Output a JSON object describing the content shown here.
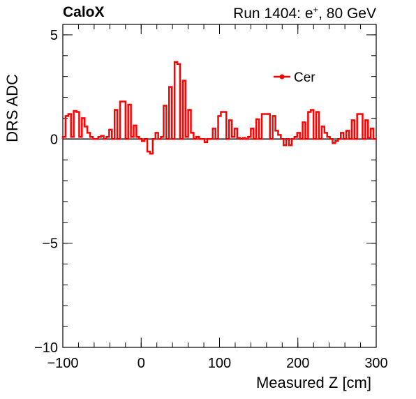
{
  "header": {
    "left": "CaloX",
    "right_prefix": "Run 1404: e",
    "right_sup": "+",
    "right_suffix": ", 80 GeV"
  },
  "chart_data": {
    "type": "line",
    "title": "",
    "xlabel": "Measured Z [cm]",
    "ylabel": "DRS ADC",
    "xlim": [
      -100,
      300
    ],
    "ylim": [
      -10,
      5.5
    ],
    "x_ticks": [
      -100,
      0,
      100,
      200,
      300
    ],
    "x_tick_labels": [
      "−100",
      "0",
      "100",
      "200",
      "300"
    ],
    "y_ticks": [
      -10,
      -5,
      0,
      5
    ],
    "y_tick_labels": [
      "−10",
      "−5",
      "0",
      "5"
    ],
    "grid": false,
    "legend_position": "top-right",
    "series": [
      {
        "name": "Cer",
        "color": "#ff0000",
        "style": "step",
        "bin_edges": [
          -100,
          300
        ],
        "values": [
          0.1,
          1.1,
          1.2,
          0.1,
          1.35,
          1.3,
          0.1,
          1.0,
          0.6,
          0.3,
          0.1,
          0.0,
          0.0,
          0.1,
          0.15,
          0.0,
          0.1,
          0.45,
          0.0,
          1.4,
          0.0,
          1.8,
          1.8,
          0.0,
          1.65,
          0.1,
          0.65,
          0.1,
          0.0,
          -0.1,
          0.0,
          -0.6,
          -0.7,
          0.0,
          0.3,
          0.0,
          0.1,
          1.6,
          0.0,
          2.5,
          0.0,
          3.7,
          3.6,
          0.0,
          2.8,
          0.1,
          1.4,
          0.3,
          0.0,
          0.1,
          0.0,
          0.0,
          -0.15,
          0.0,
          0.0,
          0.5,
          0.0,
          1.1,
          1.3,
          1.3,
          0.0,
          0.9,
          0.1,
          0.5,
          0.05,
          0.0,
          0.05,
          0.0,
          0.1,
          0.5,
          0.0,
          0.95,
          0.0,
          1.2,
          1.2,
          1.2,
          0.0,
          1.1,
          0.4,
          0.2,
          0.0,
          -0.3,
          0.0,
          -0.3,
          0.0,
          0.1,
          0.3,
          0.0,
          0.8,
          0.0,
          1.3,
          1.4,
          0.0,
          1.3,
          0.0,
          0.6,
          0.3,
          0.1,
          0.0,
          -0.2,
          -0.1,
          0.0,
          0.3,
          0.0,
          0.4,
          0.0,
          0.9,
          0.0,
          1.2,
          1.2,
          0.0,
          0.9,
          0.05,
          0.5,
          0.0
        ]
      }
    ]
  }
}
